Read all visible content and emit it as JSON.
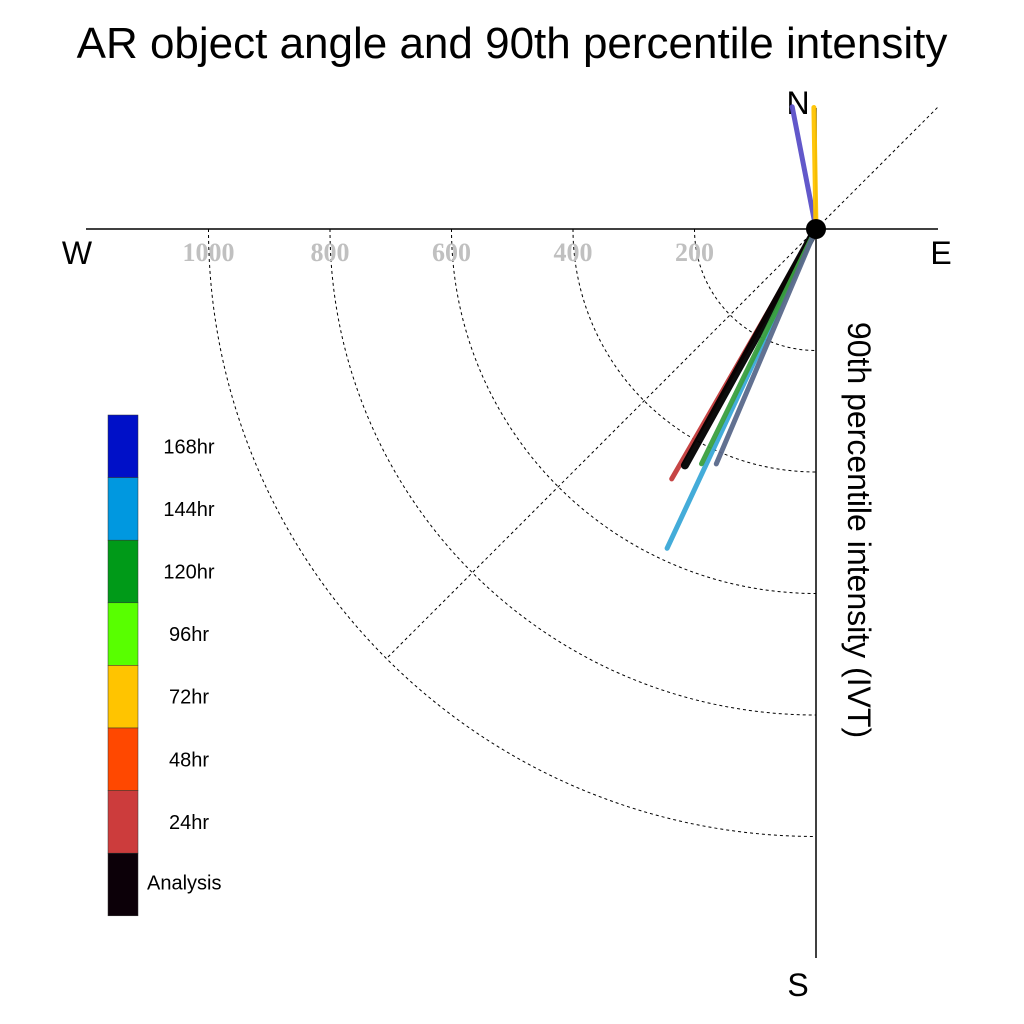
{
  "chart_data": {
    "type": "polar-vector",
    "title": "AR object angle and 90th percentile intensity",
    "ylabel": "90th percentile intensity (IVT)",
    "compass": {
      "north": "N",
      "east": "E",
      "south": "S",
      "west": "W"
    },
    "radial_ticks": [
      200,
      400,
      600,
      800,
      1000
    ],
    "radial_range": [
      0,
      1200
    ],
    "legend": [
      {
        "label": "168hr",
        "color": "#0010c8"
      },
      {
        "label": "144hr",
        "color": "#0098e0"
      },
      {
        "label": "120hr",
        "color": "#009a18"
      },
      {
        "label": "96hr",
        "color": "#58ff00"
      },
      {
        "label": "72hr",
        "color": "#ffc400"
      },
      {
        "label": "48hr",
        "color": "#ff4800"
      },
      {
        "label": "24hr",
        "color": "#cc3c3c"
      },
      {
        "label": "Analysis",
        "color": "#0c0008"
      }
    ],
    "series": [
      {
        "name": "168hr",
        "color": "#5a50c8",
        "angle_deg": 349,
        "intensity": 205
      },
      {
        "name": "72hr",
        "color": "#ffc400",
        "angle_deg": 359,
        "intensity": 200
      },
      {
        "name": "144hr",
        "color": "#3aa8d8",
        "angle_deg": 205,
        "intensity": 580
      },
      {
        "name": "24hr",
        "color": "#c43c3c",
        "angle_deg": 210,
        "intensity": 475
      },
      {
        "name": "Analysis",
        "color": "#000000",
        "angle_deg": 209,
        "intensity": 445
      },
      {
        "name": "120hr",
        "color": "#3aa040",
        "angle_deg": 206,
        "intensity": 430
      },
      {
        "name": "48hr",
        "color": "#5a6a8c",
        "angle_deg": 203,
        "intensity": 420
      }
    ]
  }
}
